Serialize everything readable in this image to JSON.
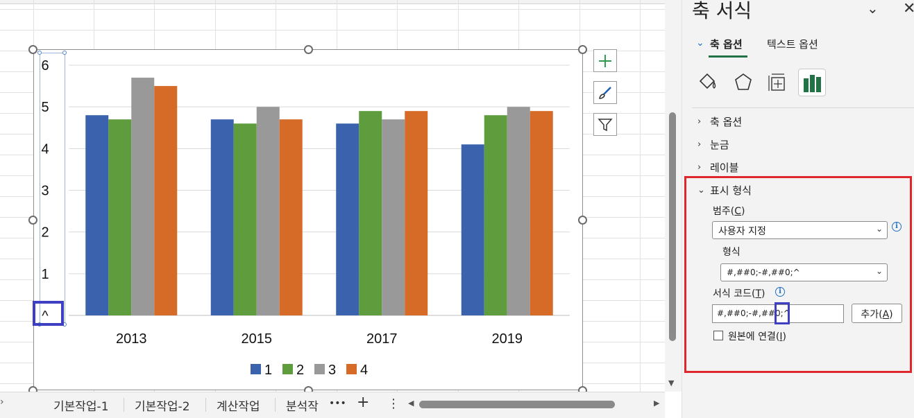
{
  "sheet": {
    "tabs": [
      {
        "label": "기본작업-1"
      },
      {
        "label": "기본작업-2"
      },
      {
        "label": "계산작업"
      },
      {
        "label": "분석작"
      }
    ],
    "more_label": "•••",
    "add_label": "+",
    "menu_label": "⋮"
  },
  "chart_data": {
    "type": "bar",
    "categories": [
      "2013",
      "2015",
      "2017",
      "2019"
    ],
    "series": [
      {
        "name": "1",
        "color": "#3b63ad",
        "values": [
          4.8,
          4.7,
          4.6,
          4.1
        ]
      },
      {
        "name": "2",
        "color": "#5f9c3e",
        "values": [
          4.7,
          4.6,
          4.9,
          4.8
        ]
      },
      {
        "name": "3",
        "color": "#999999",
        "values": [
          5.7,
          5.0,
          4.7,
          5.0
        ]
      },
      {
        "name": "4",
        "color": "#d66b28",
        "values": [
          5.5,
          4.7,
          4.9,
          4.9
        ]
      }
    ],
    "y_tick_labels": [
      "^",
      "1",
      "2",
      "3",
      "4",
      "5",
      "6"
    ],
    "ylim": [
      0,
      6
    ],
    "grid": true,
    "legend": "bottom"
  },
  "pane": {
    "title": "축 서식",
    "tabs": {
      "axis_options": "축 옵션",
      "text_options": "텍스트 옵션"
    },
    "sections": {
      "axis_options": "축 옵션",
      "ticks": "눈금",
      "labels": "레이블",
      "number": "표시 형식"
    },
    "category_label": "범주(C)",
    "category_value": "사용자 지정",
    "type_label": "형식",
    "type_value": "#,##0;-#,##0;^",
    "format_code_label": "서식 코드(T)",
    "format_code_value": "#,##0;-#,##0;^",
    "add_button": "추가(A)",
    "link_source": "원본에 연결(I)",
    "colors": {
      "highlight": "#e0262d",
      "accent": "#217346"
    }
  }
}
